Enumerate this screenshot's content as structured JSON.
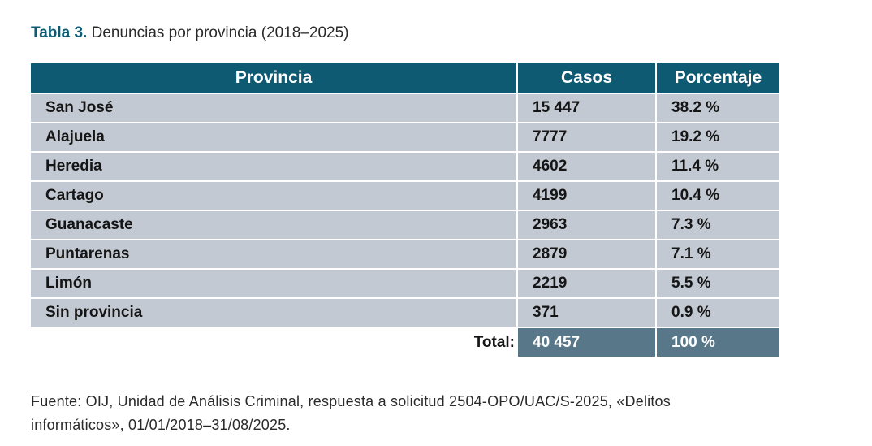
{
  "caption": {
    "label": "Tabla 3.",
    "text": "Denuncias por provincia (2018–2025)"
  },
  "table": {
    "headers": [
      "Provincia",
      "Casos",
      "Porcentaje"
    ],
    "rows": [
      {
        "provincia": "San José",
        "casos": "15 447",
        "porcentaje": "38.2 %"
      },
      {
        "provincia": "Alajuela",
        "casos": "7777",
        "porcentaje": "19.2 %"
      },
      {
        "provincia": "Heredia",
        "casos": "4602",
        "porcentaje": "11.4 %"
      },
      {
        "provincia": "Cartago",
        "casos": "4199",
        "porcentaje": "10.4 %"
      },
      {
        "provincia": "Guanacaste",
        "casos": "2963",
        "porcentaje": "7.3 %"
      },
      {
        "provincia": "Puntarenas",
        "casos": "2879",
        "porcentaje": "7.1 %"
      },
      {
        "provincia": "Limón",
        "casos": "2219",
        "porcentaje": "5.5 %"
      },
      {
        "provincia": "Sin provincia",
        "casos": "371",
        "porcentaje": "0.9 %"
      }
    ],
    "total": {
      "label": "Total:",
      "casos": "40 457",
      "porcentaje": "100 %"
    }
  },
  "source": {
    "line1": "Fuente: OIJ, Unidad de Análisis Criminal, respuesta a solicitud 2504-OPO/UAC/S-2025, «Delitos",
    "line2": "informáticos», 01/01/2018–31/08/2025."
  },
  "colors": {
    "header_bg": "#0e5a73",
    "row_bg": "#c3c9d2",
    "total_bg": "#58788a",
    "caption_label": "#0e5b73"
  }
}
